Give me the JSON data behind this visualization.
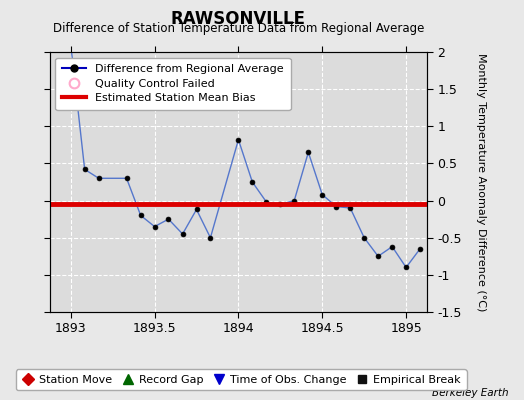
{
  "title": "RAWSONVILLE",
  "subtitle": "Difference of Station Temperature Data from Regional Average",
  "ylabel": "Monthly Temperature Anomaly Difference (°C)",
  "background_color": "#e8e8e8",
  "plot_bg_color": "#dcdcdc",
  "grid_color": "#ffffff",
  "xlim": [
    1892.875,
    1895.125
  ],
  "ylim": [
    -1.5,
    2.0
  ],
  "xticks": [
    1893,
    1893.5,
    1894,
    1894.5,
    1895
  ],
  "xtick_labels": [
    "1893",
    "1893.5",
    "1894",
    "1894.5",
    "1895"
  ],
  "yticks": [
    -1.5,
    -1.0,
    -0.5,
    0.0,
    0.5,
    1.0,
    1.5,
    2.0
  ],
  "bias_value": -0.05,
  "line_color": "#5577cc",
  "marker_facecolor": "#000000",
  "bias_color": "#dd0000",
  "months_x": [
    1893.0,
    1893.083,
    1893.167,
    1893.333,
    1893.417,
    1893.5,
    1893.583,
    1893.667,
    1893.75,
    1893.833,
    1894.0,
    1894.083,
    1894.167,
    1894.25,
    1894.333,
    1894.417,
    1894.5,
    1894.583,
    1894.667,
    1894.75,
    1894.833,
    1894.917,
    1895.0,
    1895.083
  ],
  "y_vals": [
    2.1,
    0.42,
    0.3,
    0.3,
    -0.2,
    -0.35,
    -0.25,
    -0.45,
    -0.12,
    -0.5,
    0.82,
    0.25,
    -0.02,
    -0.05,
    0.0,
    0.65,
    0.08,
    -0.08,
    -0.1,
    -0.5,
    -0.75,
    -0.62,
    -0.9,
    -0.65
  ],
  "title_fontsize": 12,
  "subtitle_fontsize": 8.5,
  "tick_fontsize": 9,
  "legend_fontsize": 8,
  "ylabel_fontsize": 8
}
